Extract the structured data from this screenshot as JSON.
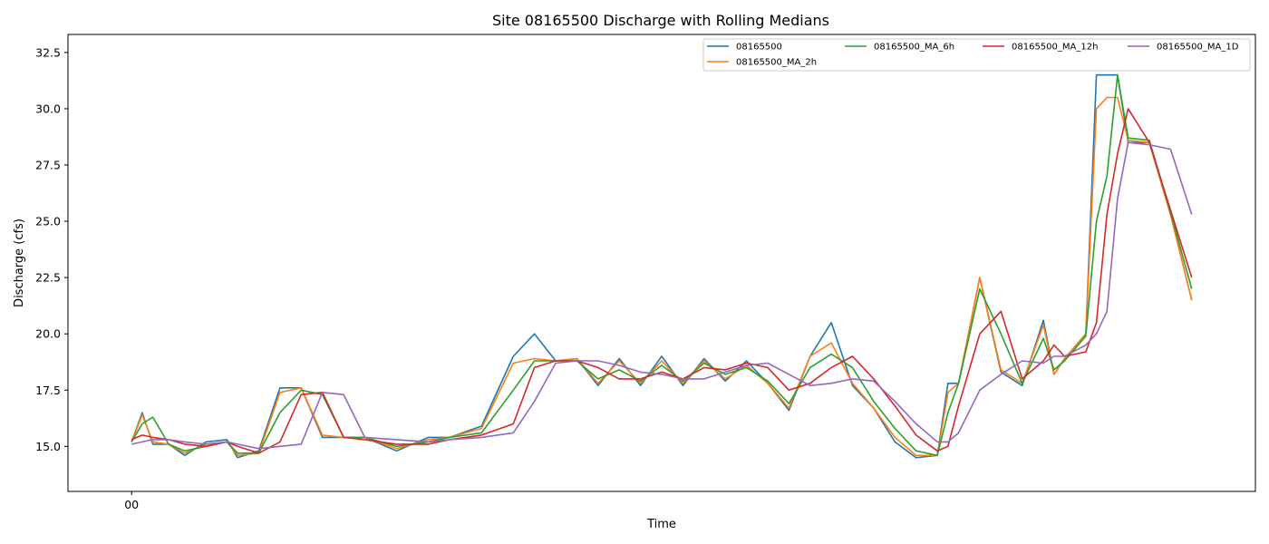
{
  "chart_data": {
    "type": "line",
    "title": "Site 08165500 Discharge with Rolling Medians",
    "xlabel": "Time",
    "ylabel": "Discharge (cfs)",
    "ylim": [
      13.0,
      33.3
    ],
    "xlim": [
      -0.06,
      1.06
    ],
    "yticks": [
      15.0,
      17.5,
      20.0,
      22.5,
      25.0,
      27.5,
      30.0,
      32.5
    ],
    "ytick_labels": [
      "15.0",
      "17.5",
      "20.0",
      "22.5",
      "25.0",
      "27.5",
      "30.0",
      "32.5"
    ],
    "xticks": [
      0.0
    ],
    "xtick_labels": [
      "00"
    ],
    "grid": false,
    "legend_position": "top-right",
    "x": [
      0.0,
      0.01,
      0.02,
      0.035,
      0.05,
      0.07,
      0.09,
      0.1,
      0.12,
      0.14,
      0.16,
      0.18,
      0.2,
      0.22,
      0.25,
      0.28,
      0.3,
      0.33,
      0.36,
      0.38,
      0.4,
      0.42,
      0.44,
      0.46,
      0.48,
      0.5,
      0.52,
      0.54,
      0.56,
      0.58,
      0.6,
      0.62,
      0.64,
      0.66,
      0.68,
      0.7,
      0.72,
      0.74,
      0.76,
      0.77,
      0.78,
      0.8,
      0.82,
      0.84,
      0.86,
      0.87,
      0.88,
      0.9,
      0.91,
      0.92,
      0.93,
      0.94,
      0.96,
      0.98,
      1.0
    ],
    "series": [
      {
        "name": "08165500",
        "color": "#1f77b4",
        "values": [
          15.2,
          16.5,
          15.1,
          15.1,
          14.6,
          15.2,
          15.3,
          14.5,
          14.8,
          17.6,
          17.6,
          15.4,
          15.4,
          15.4,
          14.8,
          15.4,
          15.4,
          15.9,
          19.0,
          20.0,
          18.8,
          18.9,
          17.7,
          18.9,
          17.7,
          19.0,
          17.7,
          18.9,
          17.9,
          18.8,
          17.8,
          16.6,
          19.0,
          20.5,
          17.7,
          16.7,
          15.2,
          14.5,
          14.6,
          17.8,
          17.8,
          22.5,
          18.3,
          17.7,
          20.6,
          18.2,
          18.9,
          20.0,
          31.5,
          31.5,
          31.5,
          28.5,
          28.5,
          25.3,
          21.5
        ]
      },
      {
        "name": "08165500_MA_2h",
        "color": "#ff7f0e",
        "values": [
          15.2,
          16.4,
          15.2,
          15.1,
          14.7,
          15.1,
          15.2,
          14.6,
          14.7,
          17.4,
          17.6,
          15.5,
          15.4,
          15.4,
          14.9,
          15.3,
          15.4,
          15.8,
          18.7,
          18.9,
          18.8,
          18.9,
          17.8,
          18.8,
          17.8,
          18.8,
          17.8,
          18.8,
          18.0,
          18.6,
          17.8,
          16.7,
          19.0,
          19.6,
          17.8,
          16.7,
          15.4,
          14.6,
          14.6,
          17.4,
          17.8,
          22.5,
          18.4,
          17.8,
          20.4,
          18.2,
          18.9,
          20.0,
          30.0,
          30.5,
          30.5,
          28.6,
          28.5,
          25.3,
          21.5
        ]
      },
      {
        "name": "08165500_MA_6h",
        "color": "#2ca02c",
        "values": [
          15.2,
          16.0,
          16.3,
          15.1,
          14.8,
          15.0,
          15.2,
          14.7,
          14.7,
          16.5,
          17.5,
          17.3,
          15.4,
          15.4,
          15.0,
          15.2,
          15.4,
          15.6,
          17.5,
          18.8,
          18.8,
          18.8,
          18.0,
          18.4,
          17.9,
          18.6,
          17.9,
          18.7,
          18.2,
          18.5,
          17.9,
          16.9,
          18.5,
          19.1,
          18.5,
          17.0,
          15.8,
          14.8,
          14.6,
          16.5,
          17.8,
          22.0,
          20.0,
          17.8,
          19.8,
          18.4,
          18.8,
          19.9,
          25.0,
          27.0,
          31.5,
          28.7,
          28.6,
          25.4,
          22.0
        ]
      },
      {
        "name": "08165500_MA_12h",
        "color": "#d62728",
        "values": [
          15.3,
          15.5,
          15.4,
          15.3,
          15.1,
          15.0,
          15.2,
          15.0,
          14.7,
          15.2,
          17.3,
          17.4,
          15.4,
          15.3,
          15.1,
          15.1,
          15.3,
          15.5,
          16.0,
          18.5,
          18.8,
          18.8,
          18.5,
          18.0,
          18.0,
          18.3,
          18.0,
          18.5,
          18.4,
          18.7,
          18.5,
          17.5,
          17.8,
          18.5,
          19.0,
          18.0,
          16.8,
          15.5,
          14.8,
          15.0,
          16.8,
          20.0,
          21.0,
          18.0,
          18.8,
          19.5,
          19.0,
          19.2,
          20.5,
          25.3,
          28.0,
          30.0,
          28.5,
          25.5,
          22.5
        ]
      },
      {
        "name": "08165500_MA_1D",
        "color": "#9467bd",
        "values": [
          15.1,
          15.2,
          15.3,
          15.3,
          15.2,
          15.1,
          15.2,
          15.1,
          14.9,
          15.0,
          15.1,
          17.4,
          17.3,
          15.4,
          15.3,
          15.2,
          15.3,
          15.4,
          15.6,
          17.0,
          18.7,
          18.8,
          18.8,
          18.6,
          18.3,
          18.2,
          18.0,
          18.0,
          18.3,
          18.6,
          18.7,
          18.2,
          17.7,
          17.8,
          18.0,
          17.9,
          17.0,
          16.0,
          15.2,
          15.2,
          15.6,
          17.5,
          18.2,
          18.8,
          18.7,
          19.0,
          19.0,
          19.5,
          20.0,
          21.0,
          26.0,
          28.5,
          28.4,
          28.2,
          25.3
        ]
      }
    ]
  }
}
